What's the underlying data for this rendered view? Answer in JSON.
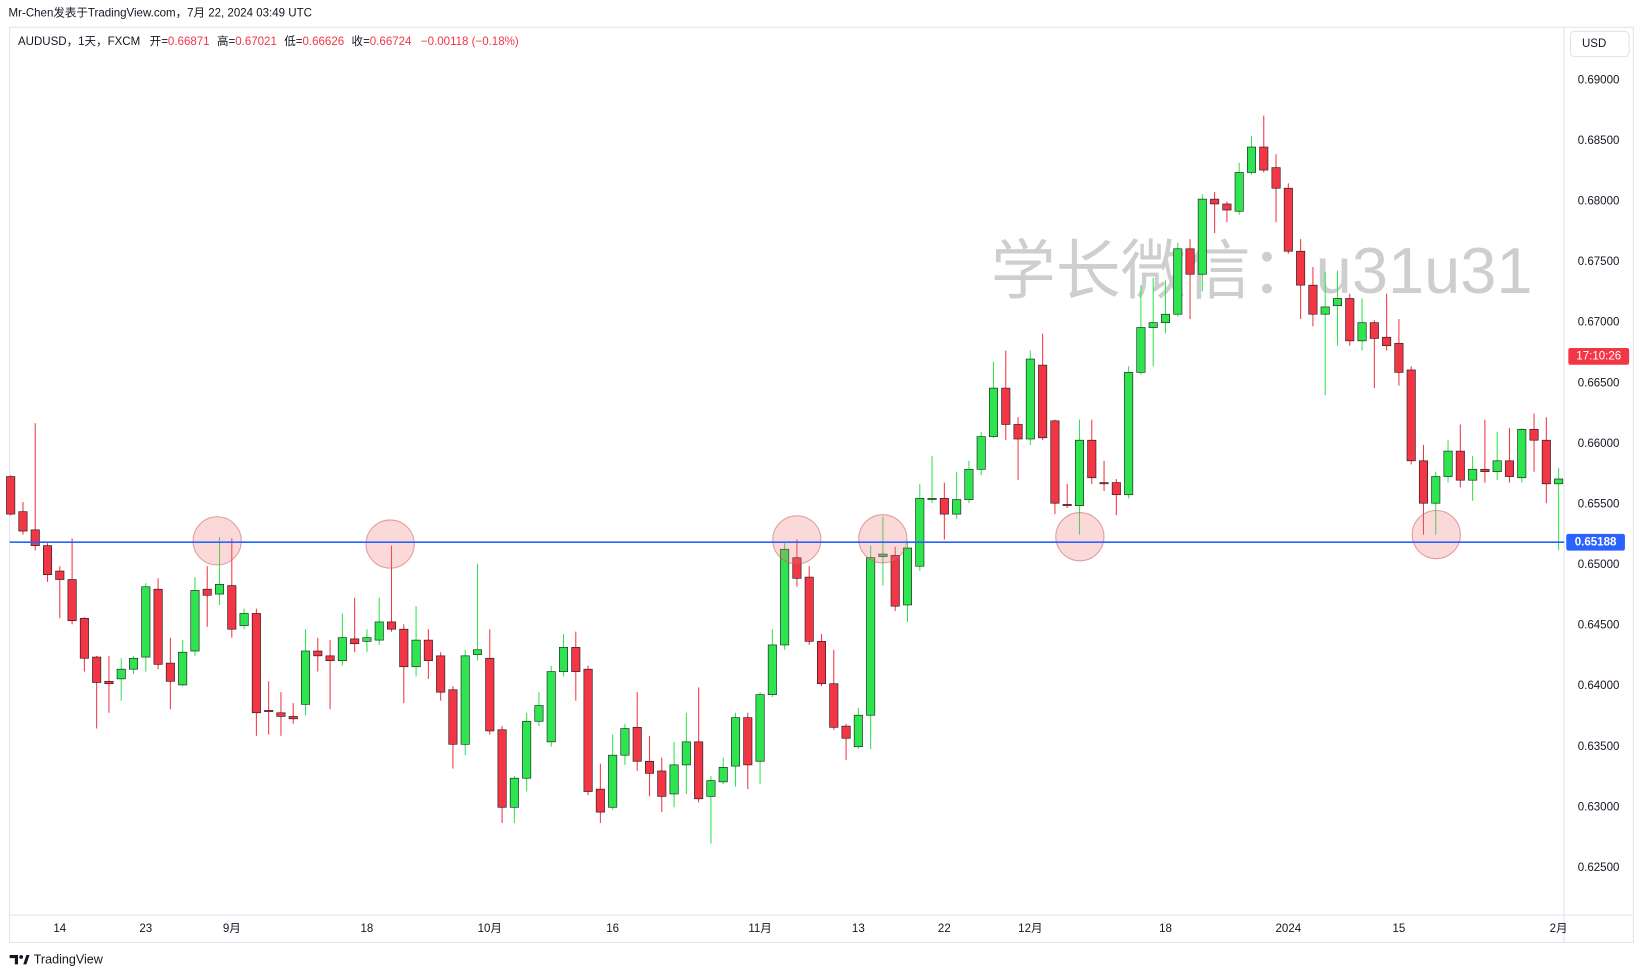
{
  "header": {
    "author_line": "Mr-Chen发表于TradingView.com，7月 22, 2024 03:49 UTC",
    "symbol": "AUDUSD，1天，FXCM",
    "ohlc": [
      {
        "key": "开=",
        "value": "0.66871"
      },
      {
        "key": "高=",
        "value": "0.67021"
      },
      {
        "key": "低=",
        "value": "0.66626"
      },
      {
        "key": "收=",
        "value": "0.66724"
      }
    ],
    "change": "−0.00118 (−0.18%)",
    "currency": "USD",
    "countdown": "17:10:26",
    "watermark": "学长微信：u31u31",
    "brand": "TradingView"
  },
  "chart_data": {
    "type": "candlestick",
    "up_color": "#2ee54f",
    "down_color": "#f23645",
    "grid": false,
    "categories": [
      null,
      null,
      null,
      null,
      "14",
      null,
      null,
      null,
      null,
      null,
      null,
      "23",
      null,
      null,
      null,
      null,
      null,
      null,
      "9月",
      null,
      null,
      null,
      null,
      null,
      null,
      null,
      null,
      null,
      null,
      "18",
      null,
      null,
      null,
      null,
      null,
      null,
      null,
      null,
      null,
      "10月",
      null,
      null,
      null,
      null,
      null,
      null,
      null,
      null,
      null,
      "16",
      null,
      null,
      null,
      null,
      null,
      null,
      null,
      null,
      null,
      null,
      null,
      "11月",
      null,
      null,
      null,
      null,
      null,
      null,
      null,
      "13",
      null,
      null,
      null,
      null,
      null,
      null,
      "22",
      null,
      null,
      null,
      null,
      null,
      null,
      "12月",
      null,
      null,
      null,
      null,
      null,
      null,
      null,
      null,
      null,
      null,
      "18",
      null,
      null,
      null,
      null,
      null,
      null,
      null,
      null,
      null,
      "2024",
      null,
      null,
      null,
      null,
      null,
      null,
      null,
      null,
      "15",
      null,
      null,
      null,
      null,
      null,
      null,
      null,
      null,
      null,
      null,
      null,
      null,
      "2月"
    ],
    "open": [
      0.6573,
      0.6544,
      0.6529,
      0.6516,
      0.6495,
      0.6488,
      0.6456,
      0.6424,
      0.6404,
      0.6406,
      0.6414,
      0.6424,
      0.648,
      0.6419,
      0.6401,
      0.6429,
      0.648,
      0.6476,
      0.6483,
      0.645,
      0.646,
      0.638,
      0.6378,
      0.6375,
      0.6385,
      0.6429,
      0.6425,
      0.6421,
      0.6439,
      0.6437,
      0.6438,
      0.6453,
      0.6447,
      0.6416,
      0.6438,
      0.6425,
      0.6397,
      0.6352,
      0.6426,
      0.6423,
      0.6364,
      0.63,
      0.6324,
      0.6371,
      0.6354,
      0.6412,
      0.6432,
      0.6414,
      0.6315,
      0.63,
      0.6343,
      0.6366,
      0.6338,
      0.633,
      0.6311,
      0.6335,
      0.6354,
      0.6309,
      0.6321,
      0.6334,
      0.6374,
      0.6338,
      0.6393,
      0.6434,
      0.6506,
      0.649,
      0.6437,
      0.6402,
      0.6367,
      0.635,
      0.6376,
      0.6507,
      0.6508,
      0.6467,
      0.6499,
      0.6554,
      0.6555,
      0.6542,
      0.6554,
      0.6579,
      0.6606,
      0.6646,
      0.6616,
      0.6604,
      0.6665,
      0.6619,
      0.655,
      0.6549,
      0.6603,
      0.6568,
      0.6568,
      0.6558,
      0.6659,
      0.6696,
      0.67,
      0.6707,
      0.6761,
      0.674,
      0.6802,
      0.6798,
      0.6792,
      0.6824,
      0.6845,
      0.6828,
      0.6811,
      0.6759,
      0.6731,
      0.6707,
      0.6714,
      0.672,
      0.6685,
      0.67,
      0.6688,
      0.6683,
      0.6661,
      0.6586,
      0.6551,
      0.6573,
      0.6594,
      0.657,
      0.6579,
      0.6577,
      0.6586,
      0.6572,
      0.6612,
      0.6603,
      0.6567
    ],
    "high": [
      0.6574,
      0.6552,
      0.6617,
      0.6518,
      0.6499,
      0.6522,
      0.6457,
      0.6425,
      0.6425,
      0.6423,
      0.6425,
      0.6485,
      0.6489,
      0.644,
      0.6438,
      0.649,
      0.6499,
      0.6523,
      0.6522,
      0.6464,
      0.6464,
      0.6404,
      0.6395,
      0.6386,
      0.6447,
      0.644,
      0.6438,
      0.646,
      0.6473,
      0.6447,
      0.6473,
      0.6516,
      0.6451,
      0.6466,
      0.6447,
      0.6428,
      0.64,
      0.643,
      0.6501,
      0.6447,
      0.6367,
      0.6326,
      0.6378,
      0.6395,
      0.6417,
      0.6443,
      0.6445,
      0.6417,
      0.6336,
      0.636,
      0.6369,
      0.6395,
      0.6359,
      0.6341,
      0.6354,
      0.6378,
      0.6399,
      0.6326,
      0.6341,
      0.6378,
      0.6378,
      0.6395,
      0.6447,
      0.6518,
      0.6521,
      0.6499,
      0.6443,
      0.643,
      0.6369,
      0.6382,
      0.6516,
      0.654,
      0.6515,
      0.652,
      0.6567,
      0.659,
      0.6568,
      0.6577,
      0.6586,
      0.661,
      0.6668,
      0.6677,
      0.6622,
      0.6677,
      0.6691,
      0.662,
      0.6567,
      0.662,
      0.662,
      0.6586,
      0.6571,
      0.6664,
      0.6731,
      0.6737,
      0.6735,
      0.6766,
      0.6769,
      0.6806,
      0.6808,
      0.68,
      0.6832,
      0.6854,
      0.6871,
      0.6839,
      0.6815,
      0.6769,
      0.6746,
      0.6742,
      0.6743,
      0.6724,
      0.672,
      0.6702,
      0.6724,
      0.6703,
      0.6664,
      0.6599,
      0.6577,
      0.6603,
      0.6616,
      0.659,
      0.662,
      0.661,
      0.6613,
      0.6613,
      0.6625,
      0.6622,
      0.658
    ],
    "low": [
      0.6541,
      0.6525,
      0.6512,
      0.6486,
      0.6456,
      0.6451,
      0.6412,
      0.6365,
      0.6378,
      0.6388,
      0.641,
      0.6412,
      0.6414,
      0.6381,
      0.64,
      0.6425,
      0.6449,
      0.6467,
      0.644,
      0.6447,
      0.6359,
      0.636,
      0.6359,
      0.6369,
      0.6376,
      0.6412,
      0.6381,
      0.6417,
      0.6428,
      0.6428,
      0.6434,
      0.6445,
      0.6386,
      0.6408,
      0.6406,
      0.6388,
      0.6332,
      0.6343,
      0.6421,
      0.636,
      0.6287,
      0.6287,
      0.6313,
      0.6367,
      0.635,
      0.6408,
      0.6388,
      0.631,
      0.6287,
      0.6298,
      0.6335,
      0.633,
      0.6309,
      0.6296,
      0.63,
      0.6311,
      0.6304,
      0.627,
      0.6319,
      0.6317,
      0.6315,
      0.6319,
      0.6391,
      0.643,
      0.6482,
      0.6434,
      0.64,
      0.6364,
      0.6339,
      0.6348,
      0.6348,
      0.6483,
      0.6462,
      0.6453,
      0.6495,
      0.6551,
      0.6521,
      0.6538,
      0.6551,
      0.6574,
      0.6605,
      0.6603,
      0.657,
      0.6599,
      0.6603,
      0.6542,
      0.6547,
      0.6525,
      0.6567,
      0.6561,
      0.6541,
      0.6555,
      0.6657,
      0.6664,
      0.6691,
      0.6705,
      0.6703,
      0.6726,
      0.6774,
      0.6783,
      0.6789,
      0.6822,
      0.6824,
      0.6783,
      0.6757,
      0.6703,
      0.6697,
      0.664,
      0.6681,
      0.6681,
      0.6677,
      0.6646,
      0.6677,
      0.6648,
      0.6583,
      0.6525,
      0.6525,
      0.6568,
      0.6564,
      0.6553,
      0.6568,
      0.657,
      0.6568,
      0.6568,
      0.6577,
      0.6551,
      0.6512
    ],
    "close": [
      0.6542,
      0.6528,
      0.6516,
      0.6492,
      0.6488,
      0.6454,
      0.6423,
      0.6403,
      0.6402,
      0.6414,
      0.6423,
      0.6482,
      0.6418,
      0.6404,
      0.6428,
      0.6479,
      0.6475,
      0.6484,
      0.6447,
      0.646,
      0.6378,
      0.6379,
      0.6375,
      0.6373,
      0.6429,
      0.6425,
      0.6421,
      0.644,
      0.6435,
      0.644,
      0.6453,
      0.6447,
      0.6416,
      0.6438,
      0.6421,
      0.6395,
      0.6352,
      0.6425,
      0.643,
      0.6363,
      0.63,
      0.6324,
      0.6371,
      0.6384,
      0.6412,
      0.6432,
      0.6412,
      0.6313,
      0.6296,
      0.6343,
      0.6365,
      0.6338,
      0.6328,
      0.6309,
      0.6335,
      0.6354,
      0.6307,
      0.6322,
      0.6333,
      0.6374,
      0.6335,
      0.6393,
      0.6434,
      0.6513,
      0.6489,
      0.6437,
      0.6402,
      0.6366,
      0.6357,
      0.6376,
      0.6506,
      0.6509,
      0.6466,
      0.6514,
      0.6555,
      0.6555,
      0.6542,
      0.6554,
      0.6579,
      0.6606,
      0.6646,
      0.6616,
      0.6604,
      0.667,
      0.6605,
      0.6551,
      0.6549,
      0.6603,
      0.6572,
      0.6567,
      0.6558,
      0.6659,
      0.6696,
      0.67,
      0.6707,
      0.6761,
      0.674,
      0.6802,
      0.6798,
      0.6793,
      0.6824,
      0.6845,
      0.6826,
      0.6811,
      0.6759,
      0.6731,
      0.6707,
      0.6713,
      0.672,
      0.6685,
      0.67,
      0.6687,
      0.6681,
      0.6659,
      0.6586,
      0.6551,
      0.6573,
      0.6594,
      0.657,
      0.6579,
      0.6577,
      0.6586,
      0.6573,
      0.6612,
      0.6603,
      0.6567,
      0.6571
    ],
    "ylim": [
      0.6211,
      0.6943
    ],
    "yticks": [
      {
        "value": 0.625,
        "label": "0.62500"
      },
      {
        "value": 0.63,
        "label": "0.63000"
      },
      {
        "value": 0.635,
        "label": "0.63500"
      },
      {
        "value": 0.64,
        "label": "0.64000"
      },
      {
        "value": 0.645,
        "label": "0.64500"
      },
      {
        "value": 0.65,
        "label": "0.65000"
      },
      {
        "value": 0.655,
        "label": "0.65500"
      },
      {
        "value": 0.66,
        "label": "0.66000"
      },
      {
        "value": 0.665,
        "label": "0.66500"
      },
      {
        "value": 0.67,
        "label": "0.67000"
      },
      {
        "value": 0.675,
        "label": "0.67500"
      },
      {
        "value": 0.68,
        "label": "0.68000"
      },
      {
        "value": 0.685,
        "label": "0.68500"
      },
      {
        "value": 0.69,
        "label": "0.69000"
      }
    ],
    "hline": {
      "value": 0.65188,
      "label": "0.65188",
      "color": "#2962ff"
    }
  }
}
